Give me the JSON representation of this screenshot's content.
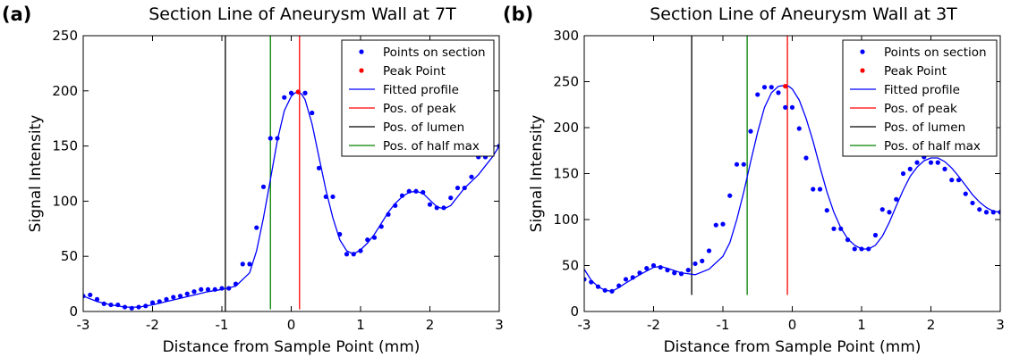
{
  "colors": {
    "points": "#0000ff",
    "peak_point": "#ff0000",
    "fitted": "#0000ff",
    "pos_peak": "#ff0000",
    "pos_lumen": "#000000",
    "pos_half_max": "#008000"
  },
  "chart_data": [
    {
      "type": "scatter+line",
      "panel_label": "(a)",
      "title": "Section Line of Aneurysm Wall at 7T",
      "xlabel": "Distance from Sample Point (mm)",
      "ylabel": "Signal Intensity",
      "xlim": [
        -3,
        3
      ],
      "ylim": [
        0,
        250
      ],
      "xticks": [
        -3,
        -2,
        -1,
        0,
        1,
        2,
        3
      ],
      "yticks": [
        0,
        50,
        100,
        150,
        200,
        250
      ],
      "legend": {
        "location": "top-right",
        "entries": [
          "Points on section",
          "Peak Point",
          "Fitted profile",
          "Pos. of peak",
          "Pos. of lumen",
          "Pos. of half max"
        ]
      },
      "points": {
        "x": [
          -3.0,
          -2.9,
          -2.8,
          -2.7,
          -2.6,
          -2.5,
          -2.4,
          -2.3,
          -2.2,
          -2.1,
          -2.0,
          -1.9,
          -1.8,
          -1.7,
          -1.6,
          -1.5,
          -1.4,
          -1.3,
          -1.2,
          -1.1,
          -1.0,
          -0.9,
          -0.8,
          -0.7,
          -0.6,
          -0.5,
          -0.4,
          -0.3,
          -0.2,
          -0.1,
          0.0,
          0.1,
          0.2,
          0.3,
          0.4,
          0.5,
          0.6,
          0.7,
          0.8,
          0.9,
          1.0,
          1.1,
          1.2,
          1.3,
          1.4,
          1.5,
          1.6,
          1.7,
          1.8,
          1.9,
          2.0,
          2.1,
          2.2,
          2.3,
          2.4,
          2.5,
          2.6,
          2.7,
          2.8,
          2.9,
          3.0
        ],
        "y": [
          14,
          15,
          11,
          7,
          6,
          6,
          4,
          3,
          4,
          5,
          8,
          9,
          11,
          13,
          14,
          16,
          18,
          20,
          20,
          20,
          21,
          21,
          25,
          43,
          43,
          76,
          113,
          157,
          157,
          194,
          198,
          199,
          198,
          180,
          130,
          104,
          104,
          70,
          52,
          52,
          55,
          65,
          67,
          77,
          88,
          96,
          105,
          109,
          109,
          108,
          97,
          94,
          94,
          103,
          112,
          112,
          122,
          140,
          140,
          150,
          150
        ]
      },
      "peak_point": {
        "x": 0.1,
        "y": 199
      },
      "fitted_profile": {
        "x": [
          -3.0,
          -2.8,
          -2.6,
          -2.4,
          -2.2,
          -2.0,
          -1.8,
          -1.6,
          -1.4,
          -1.2,
          -1.0,
          -0.8,
          -0.6,
          -0.5,
          -0.4,
          -0.3,
          -0.2,
          -0.1,
          0.0,
          0.05,
          0.1,
          0.15,
          0.2,
          0.3,
          0.4,
          0.5,
          0.6,
          0.7,
          0.8,
          0.9,
          1.0,
          1.1,
          1.2,
          1.3,
          1.4,
          1.5,
          1.6,
          1.7,
          1.8,
          1.9,
          2.0,
          2.1,
          2.2,
          2.3,
          2.4,
          2.5,
          2.6,
          2.7,
          2.8,
          2.9,
          3.0
        ],
        "y": [
          14,
          9,
          6,
          4,
          4,
          6,
          9,
          12,
          15,
          18,
          20,
          23,
          35,
          55,
          85,
          120,
          155,
          182,
          195,
          198,
          199,
          197,
          192,
          170,
          140,
          110,
          85,
          65,
          55,
          52,
          56,
          62,
          70,
          80,
          90,
          98,
          104,
          108,
          109,
          107,
          101,
          95,
          93,
          96,
          104,
          112,
          118,
          124,
          132,
          140,
          150
        ]
      },
      "vlines": {
        "peak": {
          "x": 0.12,
          "ymin": 2,
          "ymax": 250
        },
        "lumen": {
          "x": -0.95,
          "ymin": 0,
          "ymax": 250
        },
        "half_max": {
          "x": -0.3,
          "ymin": 2,
          "ymax": 250
        }
      }
    },
    {
      "type": "scatter+line",
      "panel_label": "(b)",
      "title": "Section Line of Aneurysm Wall at 3T",
      "xlabel": "Distance from Sample Point (mm)",
      "ylabel": "Signal Intensity",
      "xlim": [
        -3,
        3
      ],
      "ylim": [
        0,
        300
      ],
      "xticks": [
        -3,
        -2,
        -1,
        0,
        1,
        2,
        3
      ],
      "yticks": [
        0,
        50,
        100,
        150,
        200,
        250,
        300
      ],
      "legend": {
        "location": "top-right",
        "entries": [
          "Points on section",
          "Peak Point",
          "Fitted profile",
          "Pos. of peak",
          "Pos. of lumen",
          "Pos. of half max"
        ]
      },
      "points": {
        "x": [
          -3.0,
          -2.9,
          -2.8,
          -2.7,
          -2.6,
          -2.5,
          -2.4,
          -2.3,
          -2.2,
          -2.1,
          -2.0,
          -1.9,
          -1.8,
          -1.7,
          -1.6,
          -1.5,
          -1.4,
          -1.3,
          -1.2,
          -1.1,
          -1.0,
          -0.9,
          -0.8,
          -0.7,
          -0.6,
          -0.5,
          -0.4,
          -0.3,
          -0.2,
          -0.1,
          0.0,
          0.1,
          0.2,
          0.3,
          0.4,
          0.5,
          0.6,
          0.7,
          0.8,
          0.9,
          1.0,
          1.1,
          1.2,
          1.3,
          1.4,
          1.5,
          1.6,
          1.7,
          1.8,
          1.9,
          2.0,
          2.1,
          2.2,
          2.3,
          2.4,
          2.5,
          2.6,
          2.7,
          2.8,
          2.9,
          3.0
        ],
        "y": [
          35,
          32,
          27,
          23,
          22,
          28,
          35,
          37,
          42,
          47,
          50,
          48,
          45,
          42,
          41,
          45,
          52,
          55,
          66,
          94,
          95,
          126,
          160,
          160,
          196,
          236,
          244,
          244,
          238,
          222,
          222,
          199,
          167,
          133,
          133,
          110,
          90,
          90,
          78,
          68,
          68,
          68,
          83,
          111,
          108,
          122,
          150,
          155,
          162,
          168,
          162,
          162,
          155,
          143,
          143,
          128,
          118,
          111,
          108,
          108,
          108
        ]
      },
      "peak_point": {
        "x": -0.1,
        "y": 245
      },
      "fitted_profile": {
        "x": [
          -3.0,
          -2.9,
          -2.8,
          -2.7,
          -2.6,
          -2.5,
          -2.4,
          -2.2,
          -2.0,
          -1.9,
          -1.8,
          -1.6,
          -1.4,
          -1.2,
          -1.0,
          -0.9,
          -0.8,
          -0.7,
          -0.6,
          -0.5,
          -0.4,
          -0.3,
          -0.2,
          -0.1,
          -0.05,
          0.0,
          0.1,
          0.2,
          0.3,
          0.4,
          0.5,
          0.6,
          0.7,
          0.8,
          0.9,
          1.0,
          1.1,
          1.2,
          1.3,
          1.4,
          1.5,
          1.6,
          1.7,
          1.8,
          1.9,
          2.0,
          2.1,
          2.2,
          2.3,
          2.4,
          2.5,
          2.6,
          2.7,
          2.8,
          2.9,
          3.0
        ],
        "y": [
          46,
          34,
          27,
          23,
          22,
          26,
          31,
          40,
          48,
          49,
          47,
          42,
          40,
          46,
          60,
          75,
          100,
          130,
          163,
          195,
          222,
          238,
          245,
          246,
          245,
          242,
          230,
          210,
          185,
          157,
          130,
          108,
          91,
          79,
          72,
          68,
          68,
          72,
          82,
          97,
          115,
          132,
          147,
          157,
          164,
          167,
          167,
          163,
          156,
          147,
          137,
          127,
          119,
          113,
          109,
          108
        ]
      },
      "vlines": {
        "peak": {
          "x": -0.07,
          "ymin": 18,
          "ymax": 300
        },
        "lumen": {
          "x": -1.45,
          "ymin": 18,
          "ymax": 300
        },
        "half_max": {
          "x": -0.65,
          "ymin": 18,
          "ymax": 300
        }
      }
    }
  ]
}
